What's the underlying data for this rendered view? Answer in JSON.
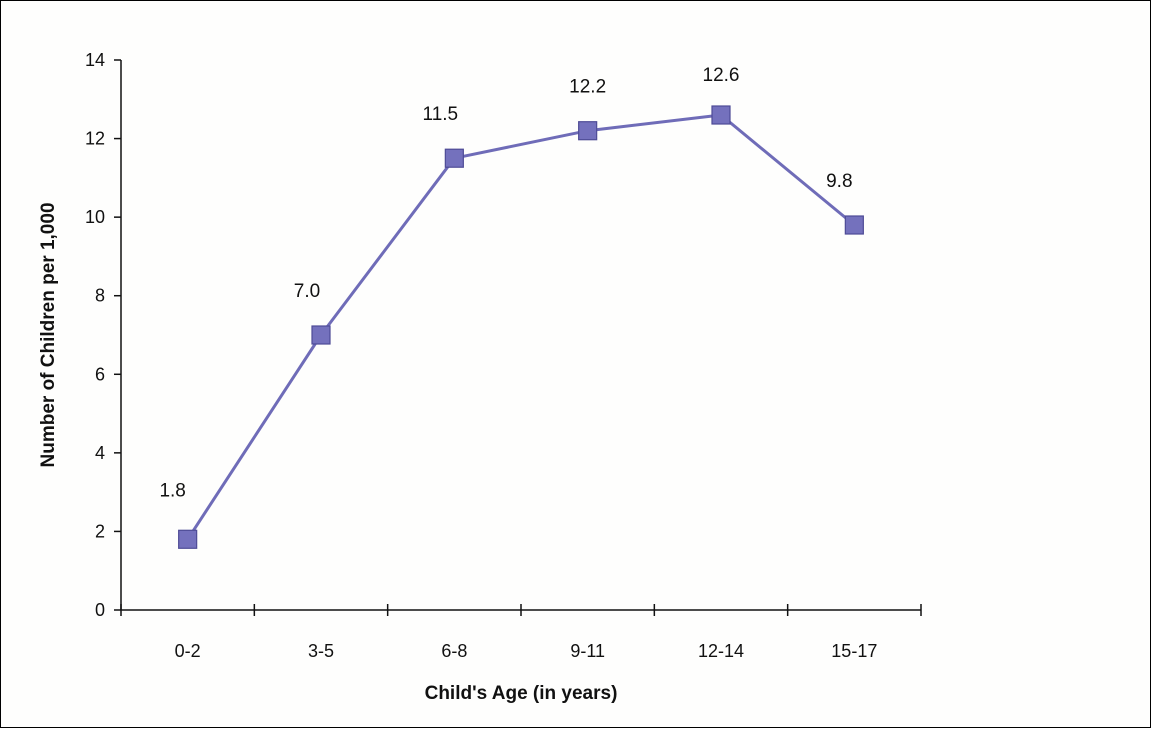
{
  "chart_data": {
    "type": "line",
    "title": "",
    "xlabel": "Child's Age (in years)",
    "ylabel": "Number of Children per 1,000",
    "categories": [
      "0-2",
      "3-5",
      "6-8",
      "9-11",
      "12-14",
      "15-17"
    ],
    "values": [
      1.8,
      7.0,
      11.5,
      12.2,
      12.6,
      9.8
    ],
    "value_labels": [
      "1.8",
      "7.0",
      "11.5",
      "12.2",
      "12.6",
      "9.8"
    ],
    "ylim": [
      0,
      14
    ],
    "yticks": [
      0,
      2,
      4,
      6,
      8,
      10,
      12,
      14
    ],
    "grid": false,
    "legend": "none",
    "marker": "square",
    "line_color": "#6f6cb8",
    "marker_color": "#7471bd",
    "marker_edge_color": "#4e4b96"
  }
}
